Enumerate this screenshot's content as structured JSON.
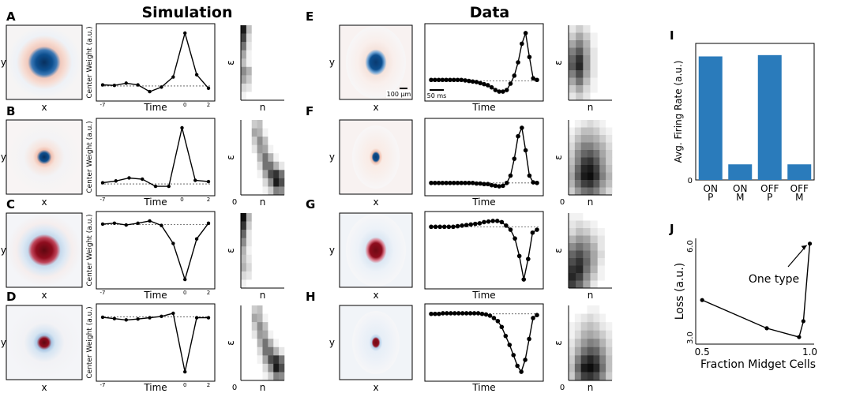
{
  "titles": {
    "simulation": "Simulation",
    "data": "Data"
  },
  "labels": {
    "x": "x",
    "y": "y",
    "time": "Time",
    "n": "n",
    "eps": "ε",
    "center_weight": "Center Weight (a.u.)"
  },
  "scale_bars": {
    "space": "100 μm",
    "time": "50 ms"
  },
  "sim_ticks": [
    "-7",
    "0",
    "2"
  ],
  "zero_tick": "0",
  "colors": {
    "bar": "#2a7bbb",
    "blue_rf": "#0d4f8f",
    "red_rf": "#8f0d1e",
    "line": "#000000"
  },
  "panels": [
    {
      "letter": "A",
      "group": "sim",
      "polarity": "blue",
      "rf_size": "large",
      "temporal": [
        0.08,
        0.07,
        0.11,
        0.08,
        -0.04,
        0.04,
        0.22,
        1.0,
        0.26,
        0.02
      ],
      "baseline": 0.06,
      "eps_n": [
        [
          0.9,
          0.25,
          0,
          0,
          0,
          0,
          0,
          0
        ],
        [
          0.75,
          0.15,
          0,
          0,
          0,
          0,
          0,
          0
        ],
        [
          0.55,
          0.1,
          0,
          0,
          0,
          0,
          0,
          0
        ],
        [
          0.35,
          0.05,
          0,
          0,
          0,
          0,
          0,
          0
        ],
        [
          0.25,
          0.05,
          0,
          0,
          0,
          0,
          0,
          0
        ],
        [
          0.45,
          0.3,
          0,
          0,
          0,
          0,
          0,
          0
        ],
        [
          0.35,
          0.2,
          0,
          0,
          0,
          0,
          0,
          0
        ],
        [
          0.15,
          0.1,
          0,
          0,
          0,
          0,
          0,
          0
        ],
        [
          0.05,
          0,
          0,
          0,
          0,
          0,
          0,
          0
        ]
      ]
    },
    {
      "letter": "B",
      "group": "sim",
      "polarity": "blue",
      "rf_size": "small",
      "temporal": [
        0.08,
        0.11,
        0.16,
        0.14,
        0.02,
        0.02,
        1.0,
        0.12,
        0.1
      ],
      "baseline": 0.06,
      "eps_n": [
        [
          0,
          0,
          0.2,
          0.25,
          0,
          0,
          0,
          0
        ],
        [
          0,
          0,
          0.35,
          0.3,
          0.05,
          0,
          0,
          0
        ],
        [
          0,
          0,
          0.2,
          0.45,
          0.25,
          0,
          0,
          0
        ],
        [
          0,
          0,
          0.1,
          0.4,
          0.35,
          0.05,
          0,
          0
        ],
        [
          0,
          0,
          0,
          0.3,
          0.55,
          0.3,
          0.05,
          0
        ],
        [
          0,
          0,
          0,
          0.15,
          0.55,
          0.55,
          0.3,
          0.1
        ],
        [
          0,
          0,
          0,
          0.05,
          0.35,
          0.7,
          0.8,
          0.55
        ],
        [
          0,
          0,
          0,
          0,
          0.15,
          0.45,
          0.9,
          0.7
        ],
        [
          0,
          0,
          0,
          0,
          0.05,
          0.2,
          0.5,
          0.45
        ]
      ]
    },
    {
      "letter": "C",
      "group": "sim",
      "polarity": "red",
      "rf_size": "large",
      "temporal": [
        0.93,
        0.95,
        0.91,
        0.95,
        1.0,
        0.9,
        0.5,
        -0.3,
        0.6,
        0.95
      ],
      "baseline": 0.92,
      "eps_n": [
        [
          0.95,
          0.3,
          0,
          0,
          0,
          0,
          0,
          0
        ],
        [
          0.8,
          0.2,
          0,
          0,
          0,
          0,
          0,
          0
        ],
        [
          0.6,
          0.1,
          0,
          0,
          0,
          0,
          0,
          0
        ],
        [
          0.45,
          0.1,
          0,
          0,
          0,
          0,
          0,
          0
        ],
        [
          0.3,
          0.05,
          0,
          0,
          0,
          0,
          0,
          0
        ],
        [
          0.25,
          0.1,
          0,
          0,
          0,
          0,
          0,
          0
        ],
        [
          0.3,
          0.15,
          0,
          0,
          0,
          0,
          0,
          0
        ],
        [
          0.15,
          0.1,
          0,
          0,
          0,
          0,
          0,
          0
        ],
        [
          0.05,
          0,
          0,
          0,
          0,
          0,
          0,
          0
        ]
      ]
    },
    {
      "letter": "D",
      "group": "sim",
      "polarity": "red",
      "rf_size": "small",
      "temporal": [
        0.93,
        0.9,
        0.87,
        0.89,
        0.92,
        0.95,
        1.02,
        -0.3,
        0.92,
        0.92
      ],
      "baseline": 0.94,
      "eps_n": [
        [
          0,
          0,
          0.2,
          0.25,
          0,
          0,
          0,
          0
        ],
        [
          0,
          0,
          0.35,
          0.3,
          0.05,
          0,
          0,
          0
        ],
        [
          0,
          0,
          0.2,
          0.45,
          0.25,
          0,
          0,
          0
        ],
        [
          0,
          0,
          0.1,
          0.4,
          0.35,
          0.05,
          0,
          0
        ],
        [
          0,
          0,
          0,
          0.3,
          0.55,
          0.3,
          0.05,
          0
        ],
        [
          0,
          0,
          0,
          0.15,
          0.55,
          0.55,
          0.3,
          0.1
        ],
        [
          0,
          0,
          0,
          0.05,
          0.35,
          0.7,
          0.8,
          0.55
        ],
        [
          0,
          0,
          0,
          0,
          0.15,
          0.45,
          0.9,
          0.7
        ],
        [
          0,
          0,
          0,
          0,
          0.05,
          0.2,
          0.5,
          0.45
        ]
      ]
    },
    {
      "letter": "E",
      "group": "data",
      "polarity": "blue",
      "rf_size": "large",
      "temporal": [
        0.12,
        0.12,
        0.12,
        0.12,
        0.12,
        0.12,
        0.12,
        0.12,
        0.12,
        0.11,
        0.1,
        0.09,
        0.08,
        0.06,
        0.04,
        0.02,
        -0.02,
        -0.07,
        -0.1,
        -0.1,
        -0.07,
        0.05,
        0.2,
        0.45,
        0.8,
        1.0,
        0.55,
        0.15,
        0.12
      ],
      "baseline": 0.1,
      "eps_n": [
        [
          0.1,
          0.2,
          0.1,
          0,
          0,
          0
        ],
        [
          0.2,
          0.35,
          0.2,
          0.05,
          0,
          0
        ],
        [
          0.35,
          0.5,
          0.3,
          0.05,
          0,
          0
        ],
        [
          0.5,
          0.65,
          0.35,
          0.1,
          0,
          0
        ],
        [
          0.6,
          0.8,
          0.4,
          0.1,
          0,
          0
        ],
        [
          0.65,
          0.85,
          0.4,
          0.1,
          0,
          0
        ],
        [
          0.5,
          0.7,
          0.35,
          0.1,
          0,
          0
        ],
        [
          0.35,
          0.55,
          0.25,
          0.05,
          0,
          0
        ],
        [
          0.2,
          0.35,
          0.15,
          0.05,
          0,
          0
        ],
        [
          0.1,
          0.2,
          0.1,
          0,
          0,
          0
        ]
      ]
    },
    {
      "letter": "F",
      "group": "data",
      "polarity": "blue",
      "rf_size": "small",
      "temporal": [
        0.02,
        0.02,
        0.02,
        0.02,
        0.02,
        0.02,
        0.02,
        0.02,
        0.02,
        0.02,
        0.02,
        0.02,
        0.01,
        0.01,
        0.0,
        0.0,
        -0.02,
        -0.03,
        -0.04,
        -0.03,
        0.02,
        0.15,
        0.45,
        0.85,
        1.0,
        0.6,
        0.15,
        0.03,
        0.02
      ],
      "baseline": 0.02,
      "eps_n": [
        [
          0,
          0.05,
          0.1,
          0.15,
          0.1,
          0.05,
          0
        ],
        [
          0.05,
          0.15,
          0.25,
          0.25,
          0.2,
          0.1,
          0.05
        ],
        [
          0.1,
          0.25,
          0.35,
          0.35,
          0.3,
          0.2,
          0.1
        ],
        [
          0.15,
          0.35,
          0.5,
          0.5,
          0.4,
          0.3,
          0.15
        ],
        [
          0.2,
          0.45,
          0.6,
          0.65,
          0.55,
          0.35,
          0.2
        ],
        [
          0.25,
          0.5,
          0.75,
          0.8,
          0.65,
          0.4,
          0.2
        ],
        [
          0.3,
          0.6,
          0.85,
          0.9,
          0.75,
          0.45,
          0.25
        ],
        [
          0.35,
          0.65,
          0.9,
          0.95,
          0.8,
          0.5,
          0.3
        ],
        [
          0.3,
          0.55,
          0.75,
          0.8,
          0.65,
          0.4,
          0.25
        ],
        [
          0.2,
          0.4,
          0.55,
          0.6,
          0.5,
          0.3,
          0.15
        ]
      ]
    },
    {
      "letter": "G",
      "group": "data",
      "polarity": "red",
      "rf_size": "large",
      "temporal": [
        0.9,
        0.9,
        0.9,
        0.9,
        0.9,
        0.9,
        0.91,
        0.92,
        0.93,
        0.94,
        0.95,
        0.96,
        0.98,
        0.99,
        1.0,
        1.0,
        0.98,
        0.92,
        0.85,
        0.7,
        0.4,
        0.0,
        0.35,
        0.8,
        0.85
      ],
      "baseline": 0.9,
      "eps_n": [
        [
          0.05,
          0.05,
          0,
          0,
          0,
          0
        ],
        [
          0.1,
          0.15,
          0.1,
          0.05,
          0,
          0
        ],
        [
          0.15,
          0.25,
          0.2,
          0.1,
          0.05,
          0
        ],
        [
          0.3,
          0.4,
          0.35,
          0.2,
          0.1,
          0
        ],
        [
          0.45,
          0.55,
          0.45,
          0.3,
          0.1,
          0
        ],
        [
          0.6,
          0.7,
          0.55,
          0.35,
          0.15,
          0
        ],
        [
          0.7,
          0.8,
          0.6,
          0.35,
          0.1,
          0
        ],
        [
          0.8,
          0.85,
          0.55,
          0.3,
          0.05,
          0
        ],
        [
          0.85,
          0.75,
          0.45,
          0.2,
          0.05,
          0
        ],
        [
          0.75,
          0.6,
          0.35,
          0.1,
          0,
          0
        ]
      ]
    },
    {
      "letter": "H",
      "group": "data",
      "polarity": "red",
      "rf_size": "small",
      "temporal": [
        0.97,
        0.97,
        0.97,
        0.98,
        0.98,
        0.98,
        0.98,
        0.98,
        0.98,
        0.98,
        0.98,
        0.98,
        0.98,
        0.97,
        0.96,
        0.94,
        0.9,
        0.85,
        0.75,
        0.6,
        0.45,
        0.28,
        0.1,
        0.0,
        0.2,
        0.55,
        0.9,
        0.95
      ],
      "baseline": 0.97,
      "eps_n": [
        [
          0,
          0,
          0,
          0.05,
          0.05,
          0,
          0
        ],
        [
          0,
          0.05,
          0.1,
          0.15,
          0.1,
          0.05,
          0
        ],
        [
          0.05,
          0.1,
          0.2,
          0.25,
          0.2,
          0.1,
          0.05
        ],
        [
          0.05,
          0.15,
          0.3,
          0.35,
          0.3,
          0.2,
          0.1
        ],
        [
          0.1,
          0.25,
          0.4,
          0.5,
          0.45,
          0.3,
          0.15
        ],
        [
          0.15,
          0.35,
          0.55,
          0.65,
          0.6,
          0.4,
          0.2
        ],
        [
          0.2,
          0.5,
          0.75,
          0.85,
          0.75,
          0.5,
          0.25
        ],
        [
          0.25,
          0.6,
          0.9,
          0.95,
          0.85,
          0.55,
          0.25
        ],
        [
          0.2,
          0.5,
          0.75,
          0.8,
          0.7,
          0.45,
          0.2
        ]
      ]
    }
  ],
  "chart_data": [
    {
      "panel": "I",
      "type": "bar",
      "categories": [
        "ON\nP",
        "ON\nM",
        "OFF\nP",
        "OFF\nM"
      ],
      "category_lines": [
        [
          "ON",
          "P"
        ],
        [
          "ON",
          "M"
        ],
        [
          "OFF",
          "P"
        ],
        [
          "OFF",
          "M"
        ]
      ],
      "values": [
        0.95,
        0.12,
        0.96,
        0.12
      ],
      "ylim": [
        0,
        1.05
      ],
      "xlabel": "",
      "ylabel": "Avg. Firing Rate (a.u.)",
      "y_ticks": [
        "0"
      ],
      "title": ""
    },
    {
      "panel": "J",
      "type": "line",
      "x": [
        0.5,
        0.8,
        0.95,
        0.97,
        1.0
      ],
      "y": [
        4.25,
        3.45,
        3.2,
        3.65,
        5.85
      ],
      "xlim": [
        0.47,
        1.02
      ],
      "ylim": [
        3.0,
        6.0
      ],
      "xlabel": "Fraction Midget Cells",
      "ylabel": "Loss (a.u.)",
      "x_ticks": [
        "0.5",
        "1.0"
      ],
      "y_ticks": [
        "3.0",
        "6.0"
      ],
      "annotation": "One type",
      "title": ""
    }
  ]
}
